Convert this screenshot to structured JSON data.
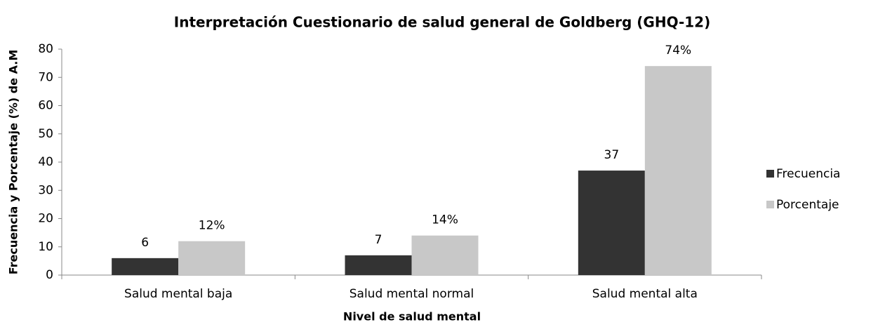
{
  "chart_data": {
    "type": "bar",
    "title": "Interpretación Cuestionario de salud general de Goldberg (GHQ-12)",
    "x_label": "Nivel de salud mental",
    "y_label": "Frecuencia y Porcentaje (%) de A.M",
    "categories": [
      "Salud mental baja",
      "Salud mental normal",
      "Salud mental alta"
    ],
    "series": [
      {
        "name": "Frecuencia",
        "color": "#333333",
        "values": [
          6,
          7,
          37
        ]
      },
      {
        "name": "Porcentaje",
        "color": "#c8c8c8",
        "values": [
          12,
          14,
          74
        ],
        "value_labels": [
          "12%",
          "14%",
          "74%"
        ]
      }
    ],
    "ylim": [
      0,
      80
    ],
    "yticks": [
      0,
      10,
      20,
      30,
      40,
      50,
      60,
      70,
      80
    ],
    "legend": "right"
  }
}
